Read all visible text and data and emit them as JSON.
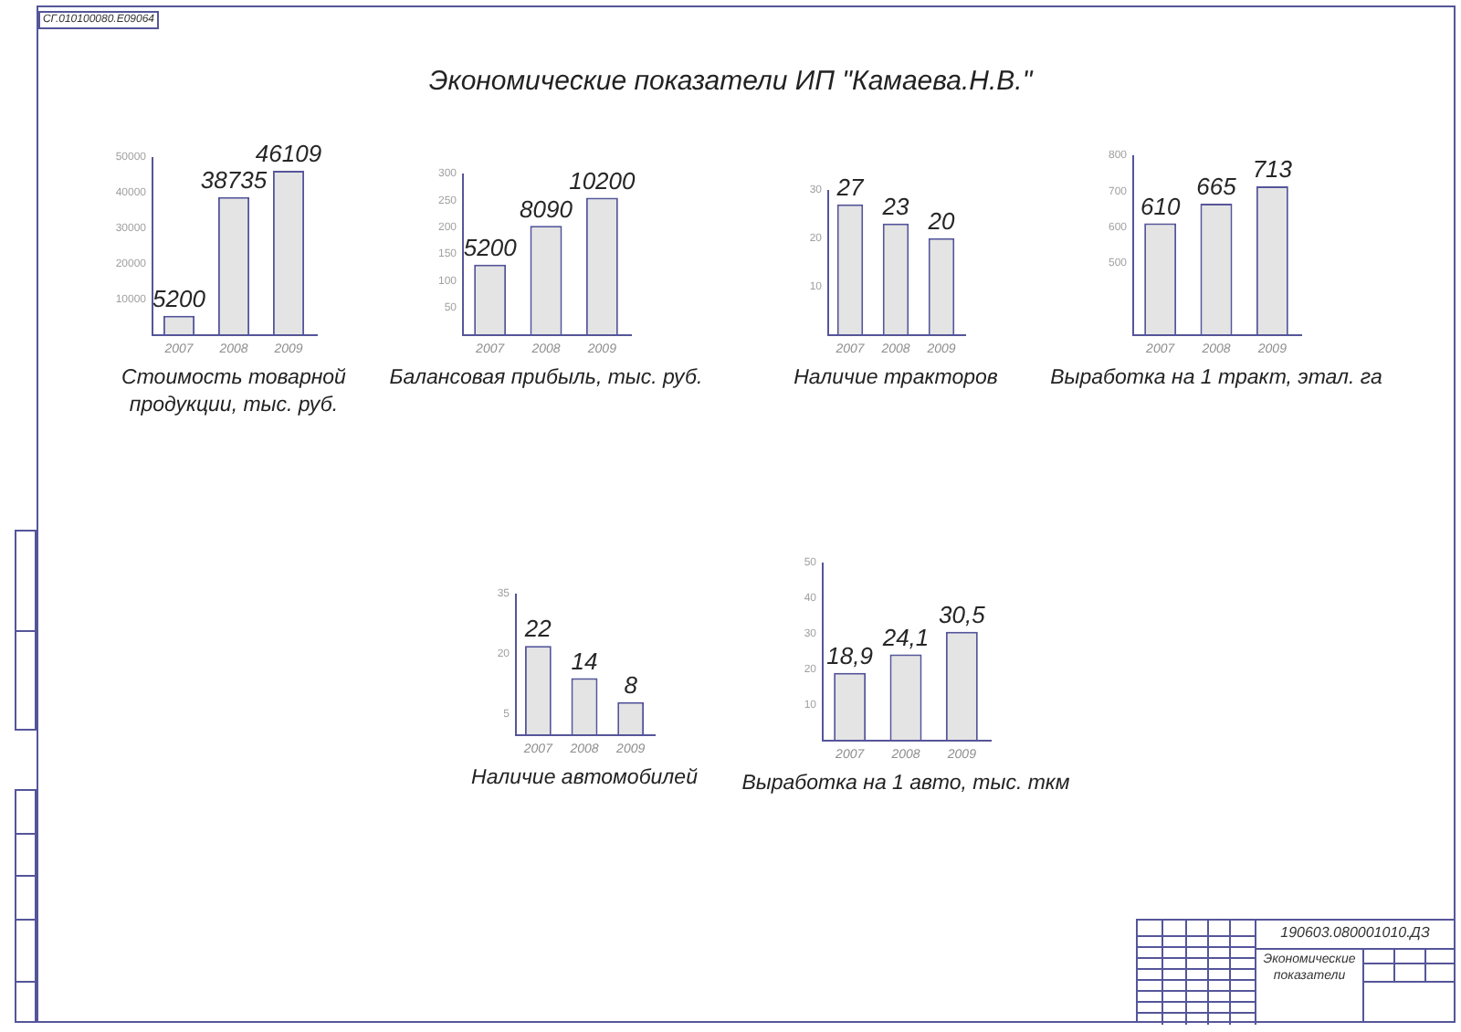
{
  "chart_data": [
    {
      "type": "other",
      "title": "Экономические показатели ИП \"Камаева.Н.В.\"",
      "annotations": [
        "СГ.010100080.Е09064",
        "190603.080001010.ДЗ",
        "Экономические показатели"
      ]
    },
    {
      "type": "bar",
      "title": "Стоимость товарной продукции, тыс. руб.",
      "categories": [
        "2007",
        "2008",
        "2009"
      ],
      "values": [
        5200,
        38735,
        46109
      ],
      "color": "#e4e4e4",
      "ylim": [
        0,
        50000
      ],
      "yticks": [
        10000,
        20000,
        30000,
        40000,
        50000
      ],
      "data_labels": true
    },
    {
      "type": "bar",
      "title": "Балансовая прибыль, тыс. руб.",
      "categories": [
        "2007",
        "2008",
        "2009"
      ],
      "series": [
        {
          "values": [
            5200,
            8090,
            10200
          ],
          "color": "#e4e4e4",
          "axis": "y2"
        }
      ],
      "ylim": [
        0,
        300
      ],
      "yticks": [
        50,
        100,
        150,
        200,
        250,
        300
      ],
      "y2lim": [
        0,
        12000
      ],
      "tick_labels": "xy",
      "data_labels": true
    },
    {
      "type": "bar",
      "title": "Наличие тракторов",
      "categories": [
        "2007",
        "2008",
        "2009"
      ],
      "values": [
        27,
        23,
        20
      ],
      "color": "#e4e4e4",
      "ylim": [
        0,
        30
      ],
      "yticks": [
        10,
        20,
        30
      ],
      "data_labels": true
    },
    {
      "type": "bar",
      "title": "Выработка на 1 тракт, этал. га",
      "categories": [
        "2007",
        "2008",
        "2009"
      ],
      "values": [
        610,
        665,
        713
      ],
      "color": "#e4e4e4",
      "ylim": [
        300,
        800
      ],
      "yticks": [
        500,
        600,
        700,
        800
      ],
      "data_labels": true
    },
    {
      "type": "bar",
      "title": "Наличие автомобилей",
      "categories": [
        "2007",
        "2008",
        "2009"
      ],
      "values": [
        22,
        14,
        8
      ],
      "color": "#e4e4e4",
      "ylim": [
        0,
        35
      ],
      "yticks": [
        5,
        20,
        35
      ],
      "data_labels": true
    },
    {
      "type": "bar",
      "title": "Выработка на 1 авто, тыс. ткм",
      "categories": [
        "2007",
        "2008",
        "2009"
      ],
      "values": [
        18.9,
        24.1,
        30.5
      ],
      "value_labels": [
        "18,9",
        "24,1",
        "30,5"
      ],
      "color": "#e4e4e4",
      "ylim": [
        0,
        50
      ],
      "yticks": [
        10,
        20,
        30,
        40,
        50
      ]
    }
  ]
}
